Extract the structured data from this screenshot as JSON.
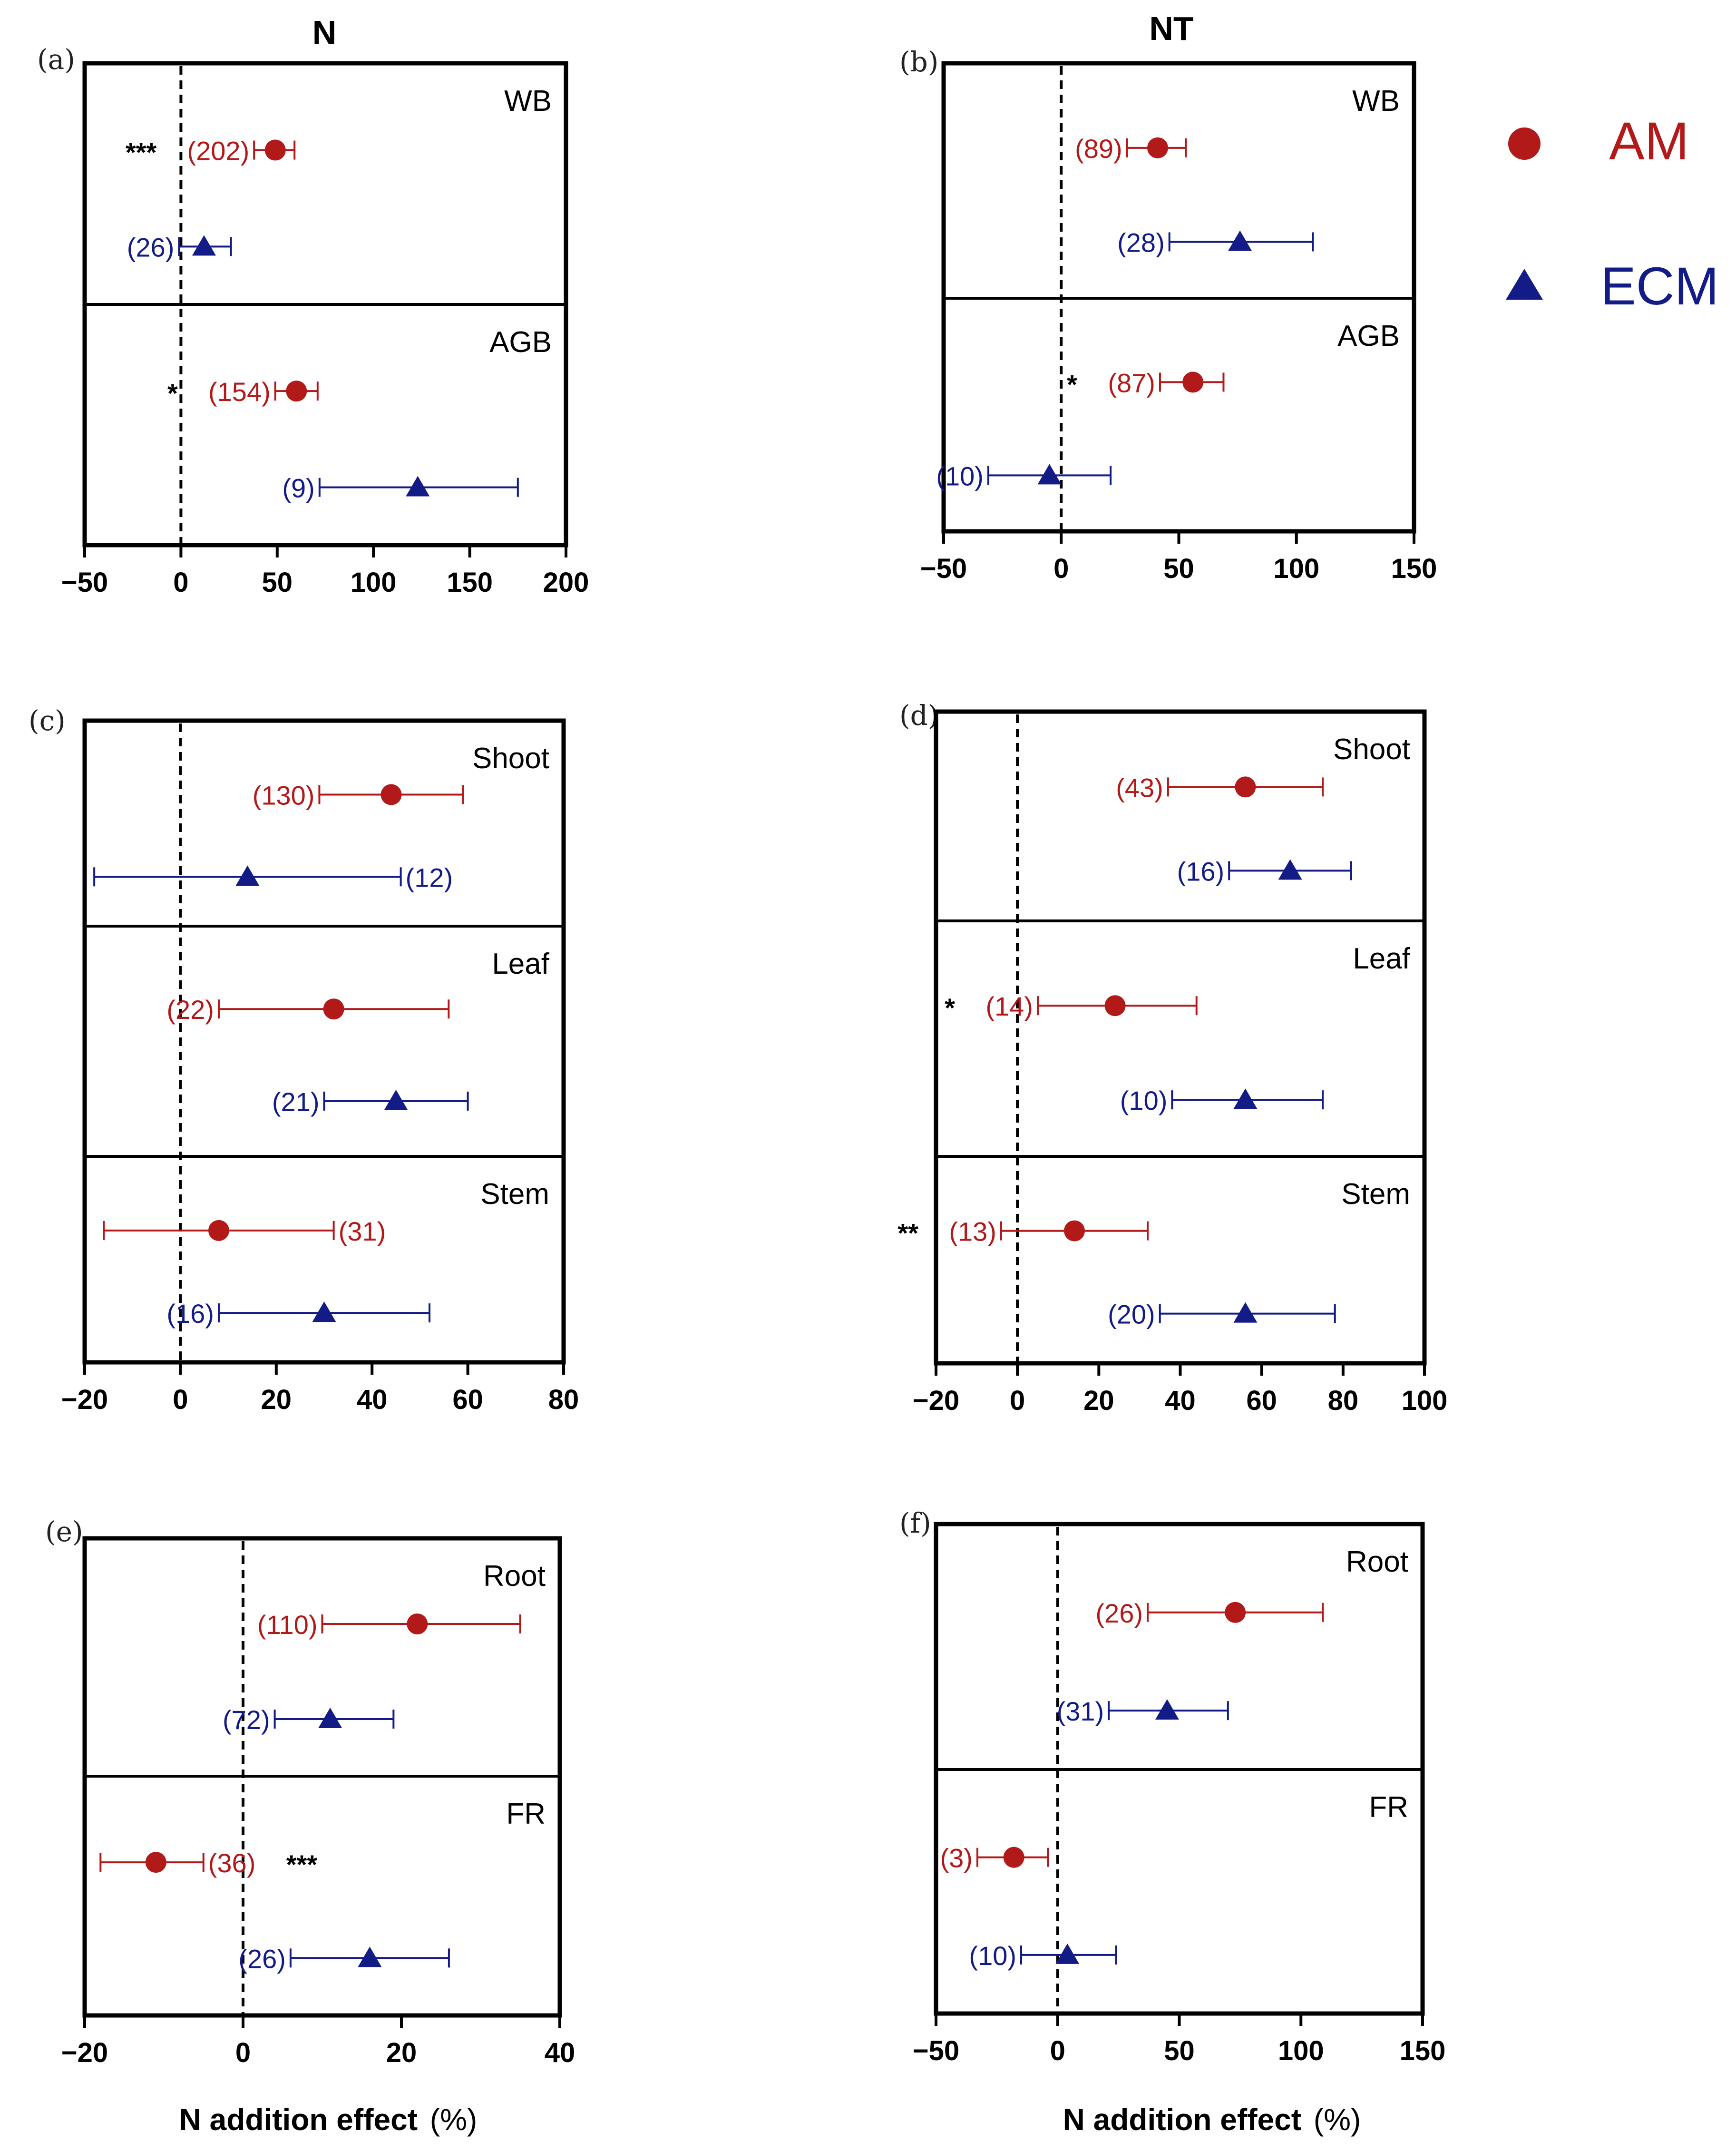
{
  "column_titles": [
    "N",
    "NT"
  ],
  "xlabel_main": "N addition effect",
  "xlabel_unit": "(%)",
  "legend": [
    {
      "label": "AM",
      "marker": "circle",
      "color": "#b21a1a"
    },
    {
      "label": "ECM",
      "marker": "triangle",
      "color": "#131c86"
    }
  ],
  "colors": {
    "am": "#b21a1a",
    "ecm": "#131c86",
    "axis": "#000000"
  },
  "chart_data": [
    {
      "type": "forest",
      "panel": "(a)",
      "xlim": [
        -50,
        200
      ],
      "xticks": [
        -50,
        0,
        50,
        100,
        150,
        200
      ],
      "xticklabels": [
        "−50",
        "0",
        "50",
        "100",
        "150",
        "200"
      ],
      "groups": [
        {
          "name": "WB",
          "rows": [
            {
              "type": "AM",
              "mean": 49,
              "lower": 38,
              "upper": 59,
              "n": "(202)",
              "n_side": "left",
              "sig": "***"
            },
            {
              "type": "ECM",
              "mean": 12,
              "lower": -1,
              "upper": 26,
              "n": "(26)",
              "n_side": "left",
              "sig": ""
            }
          ]
        },
        {
          "name": "AGB",
          "rows": [
            {
              "type": "AM",
              "mean": 60,
              "lower": 49,
              "upper": 71,
              "n": "(154)",
              "n_side": "left",
              "sig": "*"
            },
            {
              "type": "ECM",
              "mean": 123,
              "lower": 72,
              "upper": 175,
              "n": "(9)",
              "n_side": "left",
              "sig": ""
            }
          ]
        }
      ]
    },
    {
      "type": "forest",
      "panel": "(b)",
      "xlim": [
        -50,
        150
      ],
      "xticks": [
        -50,
        0,
        50,
        100,
        150
      ],
      "xticklabels": [
        "−50",
        "0",
        "50",
        "100",
        "150"
      ],
      "groups": [
        {
          "name": "WB",
          "rows": [
            {
              "type": "AM",
              "mean": 41,
              "lower": 28,
              "upper": 53,
              "n": "(89)",
              "n_side": "left",
              "sig": ""
            },
            {
              "type": "ECM",
              "mean": 76,
              "lower": 46,
              "upper": 107,
              "n": "(28)",
              "n_side": "left",
              "sig": ""
            }
          ]
        },
        {
          "name": "AGB",
          "rows": [
            {
              "type": "AM",
              "mean": 56,
              "lower": 42,
              "upper": 69,
              "n": "(87)",
              "n_side": "left",
              "sig": "*"
            },
            {
              "type": "ECM",
              "mean": -5,
              "lower": -31,
              "upper": 21,
              "n": "(10)",
              "n_side": "left",
              "sig": ""
            }
          ]
        }
      ]
    },
    {
      "type": "forest",
      "panel": "(c)",
      "xlim": [
        -20,
        80
      ],
      "xticks": [
        -20,
        0,
        20,
        40,
        60,
        80
      ],
      "xticklabels": [
        "−20",
        "0",
        "20",
        "40",
        "60",
        "80"
      ],
      "groups": [
        {
          "name": "Shoot",
          "rows": [
            {
              "type": "AM",
              "mean": 44,
              "lower": 29,
              "upper": 59,
              "n": "(130)",
              "n_side": "left",
              "sig": ""
            },
            {
              "type": "ECM",
              "mean": 14,
              "lower": -18,
              "upper": 46,
              "n": "(12)",
              "n_side": "right",
              "sig": ""
            }
          ]
        },
        {
          "name": "Leaf",
          "rows": [
            {
              "type": "AM",
              "mean": 32,
              "lower": 8,
              "upper": 56,
              "n": "(22)",
              "n_side": "left",
              "sig": ""
            },
            {
              "type": "ECM",
              "mean": 45,
              "lower": 30,
              "upper": 60,
              "n": "(21)",
              "n_side": "left",
              "sig": ""
            }
          ]
        },
        {
          "name": "Stem",
          "rows": [
            {
              "type": "AM",
              "mean": 8,
              "lower": -16,
              "upper": 32,
              "n": "(31)",
              "n_side": "right",
              "sig": ""
            },
            {
              "type": "ECM",
              "mean": 30,
              "lower": 8,
              "upper": 52,
              "n": "(16)",
              "n_side": "left",
              "sig": ""
            }
          ]
        }
      ]
    },
    {
      "type": "forest",
      "panel": "(d)",
      "xlim": [
        -20,
        100
      ],
      "xticks": [
        -20,
        0,
        20,
        40,
        60,
        80,
        100
      ],
      "xticklabels": [
        "−20",
        "0",
        "20",
        "40",
        "60",
        "80",
        "100"
      ],
      "groups": [
        {
          "name": "Shoot",
          "rows": [
            {
              "type": "AM",
              "mean": 56,
              "lower": 37,
              "upper": 75,
              "n": "(43)",
              "n_side": "left",
              "sig": ""
            },
            {
              "type": "ECM",
              "mean": 67,
              "lower": 52,
              "upper": 82,
              "n": "(16)",
              "n_side": "left",
              "sig": ""
            }
          ]
        },
        {
          "name": "Leaf",
          "rows": [
            {
              "type": "AM",
              "mean": 24,
              "lower": 5,
              "upper": 44,
              "n": "(14)",
              "n_side": "left",
              "sig": "*"
            },
            {
              "type": "ECM",
              "mean": 56,
              "lower": 38,
              "upper": 75,
              "n": "(10)",
              "n_side": "left",
              "sig": ""
            }
          ]
        },
        {
          "name": "Stem",
          "rows": [
            {
              "type": "AM",
              "mean": 14,
              "lower": -4,
              "upper": 32,
              "n": "(13)",
              "n_side": "left",
              "sig": "**"
            },
            {
              "type": "ECM",
              "mean": 56,
              "lower": 35,
              "upper": 78,
              "n": "(20)",
              "n_side": "left",
              "sig": ""
            }
          ]
        }
      ]
    },
    {
      "type": "forest",
      "panel": "(e)",
      "xlim": [
        -20,
        40
      ],
      "xticks": [
        -20,
        0,
        20,
        40
      ],
      "xticklabels": [
        "−20",
        "0",
        "20",
        "40"
      ],
      "groups": [
        {
          "name": "Root",
          "rows": [
            {
              "type": "AM",
              "mean": 22,
              "lower": 10,
              "upper": 35,
              "n": "(110)",
              "n_side": "left",
              "sig": ""
            },
            {
              "type": "ECM",
              "mean": 11,
              "lower": 4,
              "upper": 19,
              "n": "(72)",
              "n_side": "left",
              "sig": ""
            }
          ]
        },
        {
          "name": "FR",
          "rows": [
            {
              "type": "AM",
              "mean": -11,
              "lower": -18,
              "upper": -5,
              "n": "(36)",
              "n_side": "right",
              "sig": "***"
            },
            {
              "type": "ECM",
              "mean": 16,
              "lower": 6,
              "upper": 26,
              "n": "(26)",
              "n_side": "left",
              "sig": ""
            }
          ]
        }
      ]
    },
    {
      "type": "forest",
      "panel": "(f)",
      "xlim": [
        -50,
        150
      ],
      "xticks": [
        -50,
        0,
        50,
        100,
        150
      ],
      "xticklabels": [
        "−50",
        "0",
        "50",
        "100",
        "150"
      ],
      "groups": [
        {
          "name": "Root",
          "rows": [
            {
              "type": "AM",
              "mean": 73,
              "lower": 37,
              "upper": 109,
              "n": "(26)",
              "n_side": "left",
              "sig": ""
            },
            {
              "type": "ECM",
              "mean": 45,
              "lower": 21,
              "upper": 70,
              "n": "(31)",
              "n_side": "left",
              "sig": ""
            }
          ]
        },
        {
          "name": "FR",
          "rows": [
            {
              "type": "AM",
              "mean": -18,
              "lower": -33,
              "upper": -4,
              "n": "(3)",
              "n_side": "left",
              "sig": ""
            },
            {
              "type": "ECM",
              "mean": 4,
              "lower": -15,
              "upper": 24,
              "n": "(10)",
              "n_side": "left",
              "sig": ""
            }
          ]
        }
      ]
    }
  ]
}
